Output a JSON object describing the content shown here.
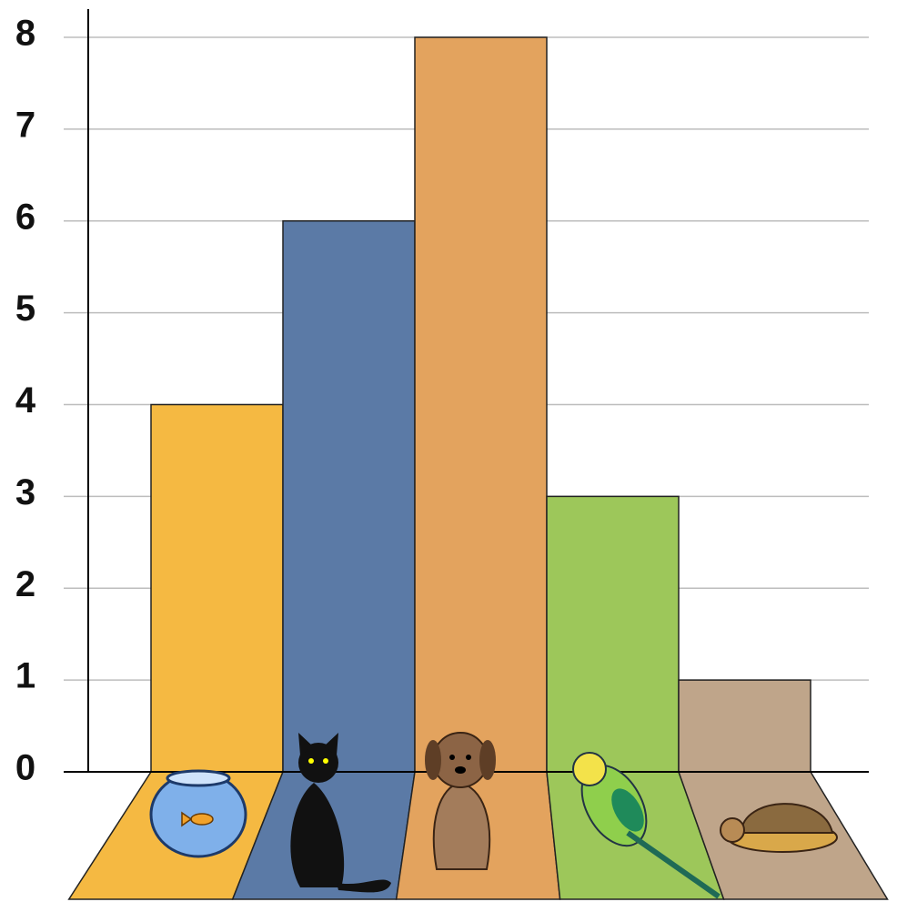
{
  "chart_data": {
    "type": "bar",
    "categories": [
      null,
      null,
      null,
      null,
      null
    ],
    "values": [
      4,
      6,
      8,
      3,
      1
    ],
    "colors": [
      "#f5b942",
      "#5b7aa6",
      "#e3a35e",
      "#9dc75a",
      "#bfa58a"
    ],
    "ylim": [
      0,
      8
    ],
    "yticks": [
      0,
      1,
      2,
      3,
      4,
      5,
      6,
      7,
      8
    ],
    "grid": true
  }
}
